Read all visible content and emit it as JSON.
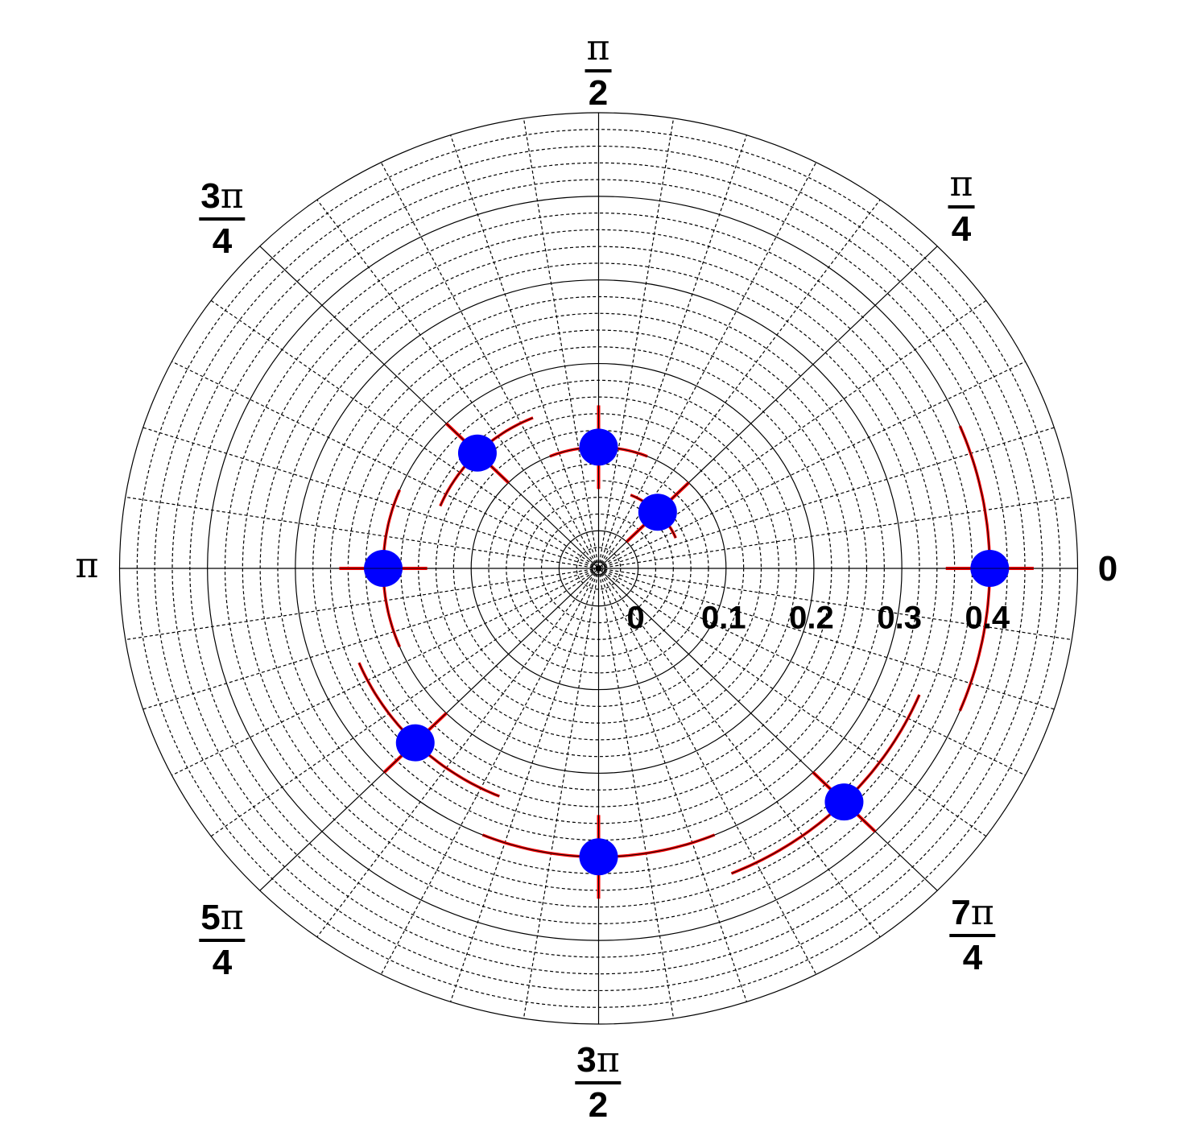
{
  "chart_data": {
    "type": "polar",
    "title": "",
    "theta": [
      0.7854,
      1.5708,
      2.3562,
      3.1416,
      3.927,
      4.7124,
      5.4978,
      6.2832
    ],
    "r": [
      0.05,
      0.1,
      0.15,
      0.2,
      0.25,
      0.3,
      0.35,
      0.4
    ],
    "theta_errors": [
      0.3927,
      0.3927,
      0.3927,
      0.3927,
      0.3927,
      0.3927,
      0.3927,
      0.3927
    ],
    "r_errors": [
      0.05,
      0.05,
      0.05,
      0.05,
      0.05,
      0.05,
      0.05,
      0.05
    ],
    "radial_range": [
      -0.045,
      0.5
    ],
    "radial_tick_labels": [
      "0",
      "0.1",
      "0.2",
      "0.3",
      "0.4"
    ],
    "radial_ticks": [
      0,
      0.1,
      0.2,
      0.3,
      0.4
    ],
    "angular_labels": [
      {
        "num": "0",
        "den": ""
      },
      {
        "num": "π",
        "den": "4"
      },
      {
        "num": "π",
        "den": "2"
      },
      {
        "num": "3π",
        "den": "4"
      },
      {
        "num": "π",
        "den": ""
      },
      {
        "num": "5π",
        "den": "4"
      },
      {
        "num": "3π",
        "den": "2"
      },
      {
        "num": "7π",
        "den": "4"
      }
    ],
    "grid": true,
    "marker_color": "#0000ff",
    "error_color": "#ff0000",
    "grid_color": "#000000"
  }
}
